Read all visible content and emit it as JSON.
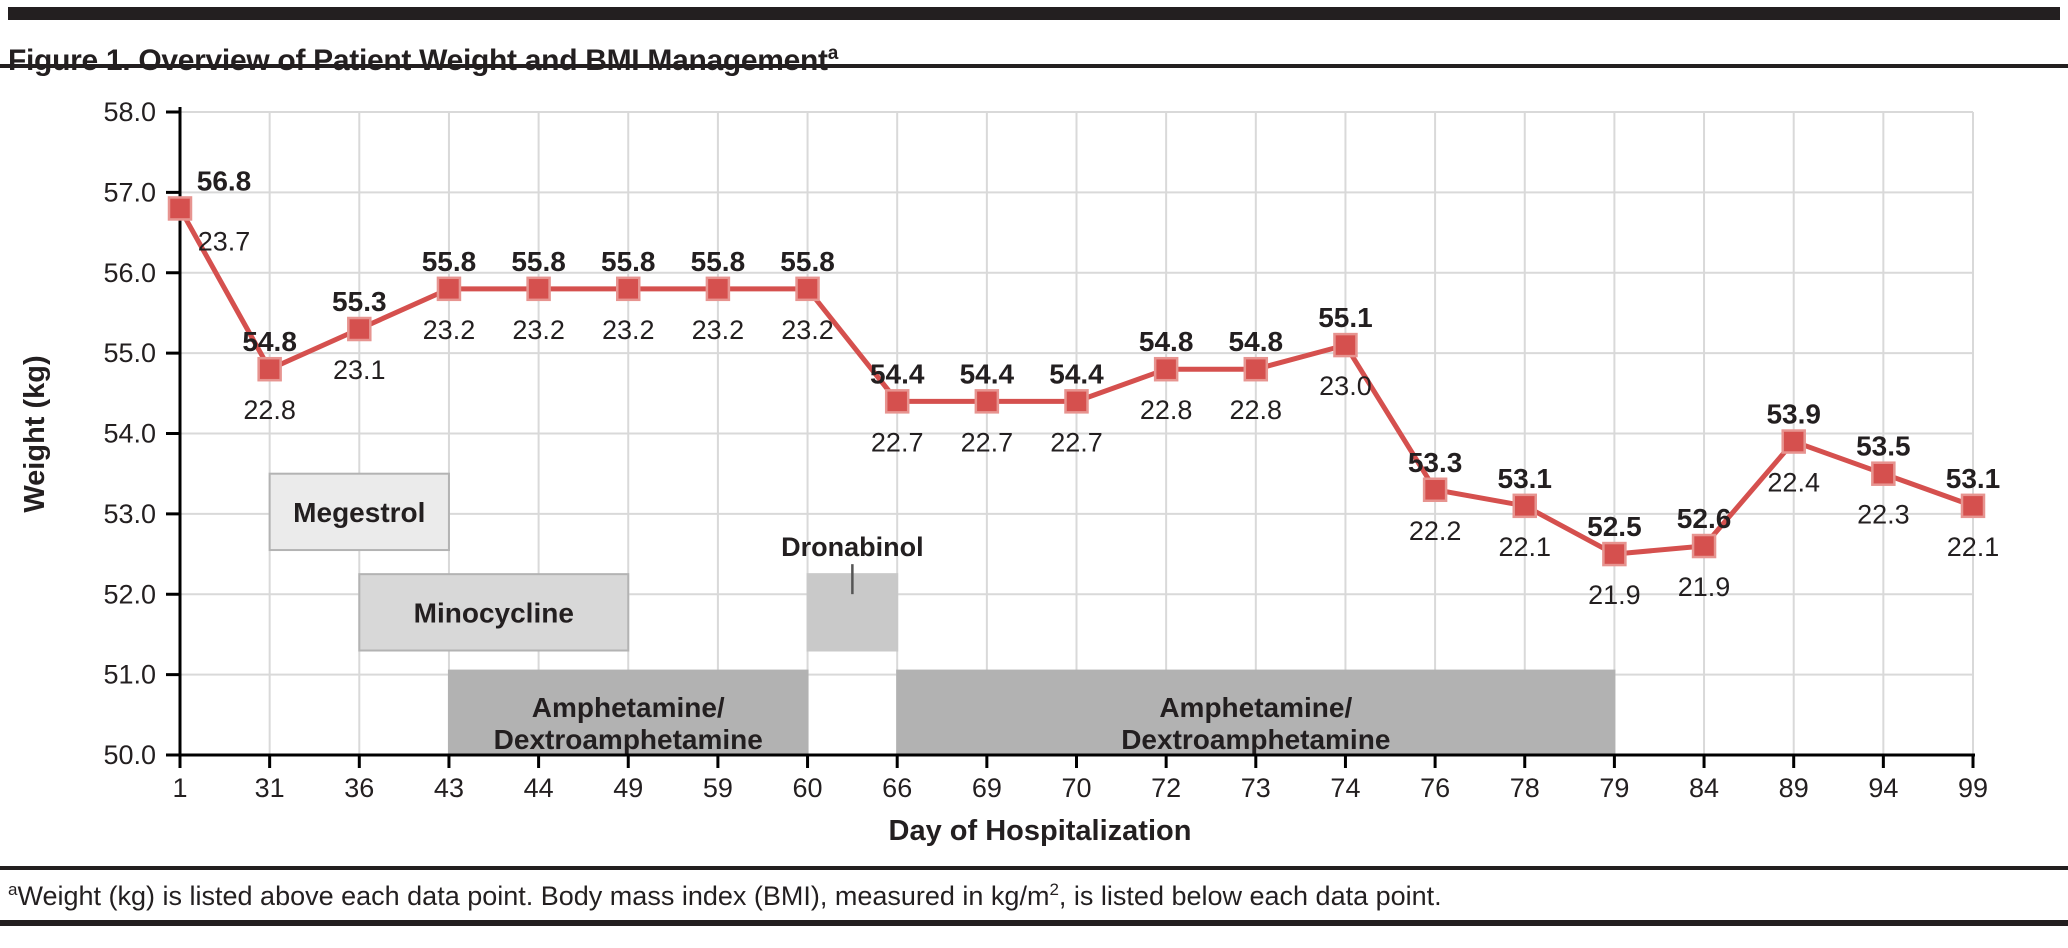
{
  "header": {
    "title": "Figure 1. Overview of Patient Weight and BMI Management",
    "superscript": "a"
  },
  "footnote": {
    "sup1": "a",
    "part1": "Weight (kg) is listed above each data point. Body mass index (BMI), measured in kg/m",
    "sup2": "2",
    "part2": ",  is listed below each data point."
  },
  "chart_data": {
    "type": "line",
    "xlabel": "Day of Hospitalization",
    "ylabel": "Weight (kg)",
    "ylim": [
      50.0,
      58.0
    ],
    "ytick_step": 1.0,
    "grid": true,
    "legend": "none",
    "categories": [
      1,
      31,
      36,
      43,
      44,
      49,
      59,
      60,
      66,
      69,
      70,
      72,
      73,
      74,
      76,
      78,
      79,
      84,
      89,
      94,
      99
    ],
    "series": [
      {
        "name": "Weight (kg)",
        "values": [
          56.8,
          54.8,
          55.3,
          55.8,
          55.8,
          55.8,
          55.8,
          55.8,
          54.4,
          54.4,
          54.4,
          54.8,
          54.8,
          55.1,
          53.3,
          53.1,
          52.5,
          52.6,
          53.9,
          53.5,
          53.1
        ]
      },
      {
        "name": "BMI (kg/m2)",
        "values": [
          23.7,
          22.8,
          23.1,
          23.2,
          23.2,
          23.2,
          23.2,
          23.2,
          22.7,
          22.7,
          22.7,
          22.8,
          22.8,
          23.0,
          22.2,
          22.1,
          21.9,
          21.9,
          22.4,
          22.3,
          22.1
        ]
      }
    ],
    "label_offsets": {
      "0": {
        "wdx": 44,
        "bdx": 44,
        "bdy": -8
      }
    },
    "medications": [
      {
        "label": [
          "Megestrol"
        ],
        "start_day": 31,
        "end_day": 43,
        "y_from": 52.55,
        "y_to": 53.5,
        "fill": "#ebebeb",
        "border": "#b3b3b3",
        "label_outside": false
      },
      {
        "label": [
          "Minocycline"
        ],
        "start_day": 36,
        "end_day": 49,
        "y_from": 51.3,
        "y_to": 52.25,
        "fill": "#d8d8d8",
        "border": "#b3b3b3",
        "label_outside": false
      },
      {
        "label": [
          "Dronabinol"
        ],
        "start_day": 60,
        "end_day": 66,
        "y_from": 51.3,
        "y_to": 52.25,
        "fill": "#c9c9c9",
        "border": "#c9c9c9",
        "label_outside": true
      },
      {
        "label": [
          "Amphetamine/",
          "Dextroamphetamine"
        ],
        "start_day": 43,
        "end_day": 60,
        "y_from": 50.0,
        "y_to": 51.05,
        "fill": "#b2b2b2",
        "border": "#b2b2b2",
        "label_outside": false
      },
      {
        "label": [
          "Amphetamine/",
          "Dextroamphetamine"
        ],
        "start_day": 66,
        "end_day": 79,
        "y_from": 50.0,
        "y_to": 51.05,
        "fill": "#b2b2b2",
        "border": "#b2b2b2",
        "label_outside": false
      }
    ],
    "colors": {
      "line": "#d5504e",
      "marker_fill": "#d5504e",
      "marker_stroke": "#e79490",
      "gridline": "#d9d9d9",
      "axis": "#000000",
      "text": "#231f20"
    }
  }
}
